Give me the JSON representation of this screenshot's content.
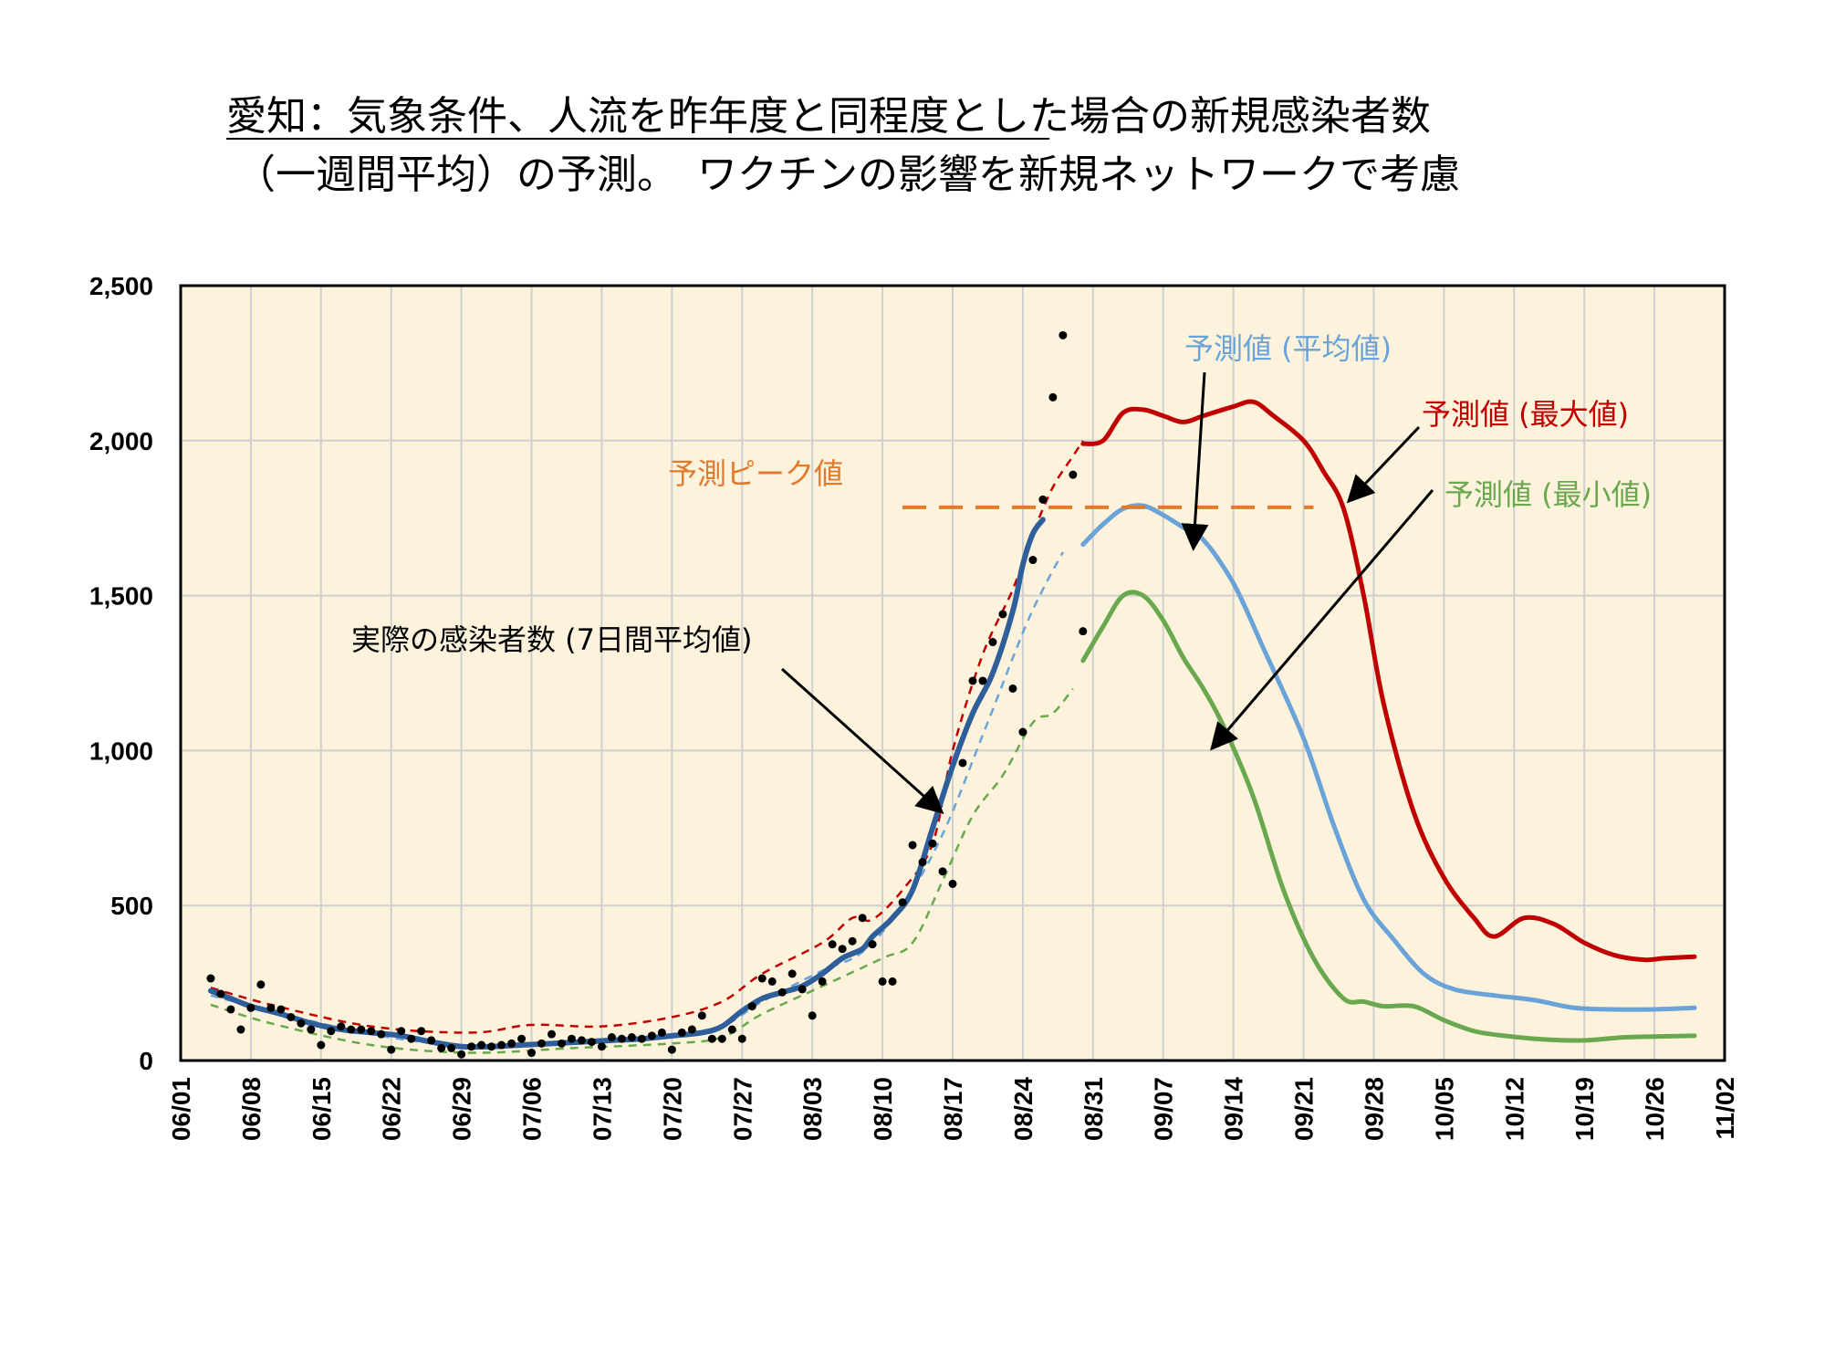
{
  "title_line1": "愛知：気象条件、人流を昨年度と同程度とした場合の新規感染者数",
  "title_line2": "（一週間平均）の予測。　ワクチンの影響を新規ネットワークで考慮",
  "colors": {
    "plot_bg": "#fdf3dc",
    "actual": "#2e5f9a",
    "mean": "#6aa3d8",
    "max": "#c00000",
    "min": "#6aa84f",
    "peak": "#e07b2e",
    "points": "#000000"
  },
  "chart_data": {
    "type": "line",
    "x_type": "date",
    "xlim": [
      "06-01",
      "11-02"
    ],
    "ylim": [
      0,
      2500
    ],
    "y_ticks": [
      0,
      500,
      1000,
      1500,
      2000,
      2500
    ],
    "y_tick_labels": [
      "0",
      "500",
      "1,000",
      "1,500",
      "2,000",
      "2,500"
    ],
    "x_tick_labels": [
      "06/01",
      "06/08",
      "06/15",
      "06/22",
      "06/29",
      "07/06",
      "07/13",
      "07/20",
      "07/27",
      "08/03",
      "08/10",
      "08/17",
      "08/24",
      "08/31",
      "09/07",
      "09/14",
      "09/21",
      "09/28",
      "10/05",
      "10/12",
      "10/19",
      "10/26",
      "11/02"
    ],
    "grid": true,
    "peak_value": 1785,
    "peak_range": [
      "08-12",
      "09-22"
    ],
    "series": [
      {
        "name": "実際の感染者数 (7日間平均値)",
        "style": "solid",
        "points": [
          [
            "06-04",
            225
          ],
          [
            "06-06",
            200
          ],
          [
            "06-08",
            175
          ],
          [
            "06-11",
            150
          ],
          [
            "06-14",
            120
          ],
          [
            "06-17",
            100
          ],
          [
            "06-20",
            90
          ],
          [
            "06-23",
            80
          ],
          [
            "06-26",
            60
          ],
          [
            "06-29",
            45
          ],
          [
            "07-02",
            45
          ],
          [
            "07-05",
            50
          ],
          [
            "07-08",
            55
          ],
          [
            "07-11",
            60
          ],
          [
            "07-14",
            65
          ],
          [
            "07-17",
            70
          ],
          [
            "07-20",
            80
          ],
          [
            "07-23",
            90
          ],
          [
            "07-25",
            110
          ],
          [
            "07-27",
            160
          ],
          [
            "07-29",
            200
          ],
          [
            "07-31",
            220
          ],
          [
            "08-02",
            240
          ],
          [
            "08-04",
            280
          ],
          [
            "08-06",
            330
          ],
          [
            "08-08",
            360
          ],
          [
            "08-09",
            400
          ],
          [
            "08-11",
            460
          ],
          [
            "08-13",
            550
          ],
          [
            "08-15",
            750
          ],
          [
            "08-17",
            950
          ],
          [
            "08-19",
            1120
          ],
          [
            "08-21",
            1250
          ],
          [
            "08-23",
            1450
          ],
          [
            "08-24",
            1600
          ],
          [
            "08-25",
            1700
          ],
          [
            "08-26",
            1745
          ]
        ]
      },
      {
        "name": "",
        "style": "dashed-mean-fit",
        "points": [
          [
            "06-04",
            210
          ],
          [
            "06-10",
            160
          ],
          [
            "06-20",
            85
          ],
          [
            "06-30",
            45
          ],
          [
            "07-10",
            55
          ],
          [
            "07-20",
            75
          ],
          [
            "07-25",
            110
          ],
          [
            "07-29",
            190
          ],
          [
            "08-04",
            290
          ],
          [
            "08-08",
            350
          ],
          [
            "08-12",
            500
          ],
          [
            "08-16",
            730
          ],
          [
            "08-20",
            1050
          ],
          [
            "08-24",
            1380
          ],
          [
            "08-26",
            1520
          ],
          [
            "08-28",
            1640
          ]
        ]
      },
      {
        "name": "",
        "style": "dashed-max-fit",
        "points": [
          [
            "06-04",
            235
          ],
          [
            "06-10",
            180
          ],
          [
            "06-20",
            110
          ],
          [
            "06-30",
            90
          ],
          [
            "07-06",
            115
          ],
          [
            "07-13",
            110
          ],
          [
            "07-20",
            140
          ],
          [
            "07-25",
            190
          ],
          [
            "07-29",
            280
          ],
          [
            "08-04",
            380
          ],
          [
            "08-07",
            460
          ],
          [
            "08-09",
            455
          ],
          [
            "08-12",
            550
          ],
          [
            "08-15",
            700
          ],
          [
            "08-17",
            1000
          ],
          [
            "08-20",
            1310
          ],
          [
            "08-23",
            1520
          ],
          [
            "08-25",
            1700
          ],
          [
            "08-27",
            1850
          ],
          [
            "08-29",
            1950
          ],
          [
            "08-30",
            2000
          ]
        ]
      },
      {
        "name": "",
        "style": "dashed-min-fit",
        "points": [
          [
            "06-04",
            180
          ],
          [
            "06-10",
            120
          ],
          [
            "06-20",
            50
          ],
          [
            "06-30",
            25
          ],
          [
            "07-10",
            40
          ],
          [
            "07-20",
            55
          ],
          [
            "07-25",
            75
          ],
          [
            "07-29",
            150
          ],
          [
            "08-04",
            240
          ],
          [
            "08-10",
            330
          ],
          [
            "08-13",
            380
          ],
          [
            "08-16",
            580
          ],
          [
            "08-19",
            790
          ],
          [
            "08-22",
            920
          ],
          [
            "08-25",
            1090
          ],
          [
            "08-27",
            1120
          ],
          [
            "08-29",
            1200
          ]
        ]
      },
      {
        "name": "予測値 (平均値)",
        "style": "solid",
        "points": [
          [
            "08-30",
            1665
          ],
          [
            "09-01",
            1730
          ],
          [
            "09-03",
            1780
          ],
          [
            "09-05",
            1790
          ],
          [
            "09-07",
            1760
          ],
          [
            "09-09",
            1720
          ],
          [
            "09-11",
            1680
          ],
          [
            "09-14",
            1540
          ],
          [
            "09-17",
            1330
          ],
          [
            "09-21",
            1040
          ],
          [
            "09-24",
            760
          ],
          [
            "09-27",
            520
          ],
          [
            "09-30",
            390
          ],
          [
            "10-03",
            280
          ],
          [
            "10-06",
            230
          ],
          [
            "10-10",
            210
          ],
          [
            "10-14",
            195
          ],
          [
            "10-18",
            170
          ],
          [
            "10-22",
            165
          ],
          [
            "10-26",
            165
          ],
          [
            "10-30",
            170
          ]
        ]
      },
      {
        "name": "予測値 (最大値)",
        "style": "solid",
        "points": [
          [
            "08-30",
            1990
          ],
          [
            "09-01",
            2000
          ],
          [
            "09-03",
            2090
          ],
          [
            "09-05",
            2100
          ],
          [
            "09-07",
            2080
          ],
          [
            "09-09",
            2060
          ],
          [
            "09-11",
            2080
          ],
          [
            "09-14",
            2110
          ],
          [
            "09-16",
            2125
          ],
          [
            "09-18",
            2080
          ],
          [
            "09-21",
            2000
          ],
          [
            "09-23",
            1900
          ],
          [
            "09-25",
            1780
          ],
          [
            "09-27",
            1500
          ],
          [
            "09-29",
            1150
          ],
          [
            "10-02",
            800
          ],
          [
            "10-05",
            590
          ],
          [
            "10-08",
            460
          ],
          [
            "10-10",
            400
          ],
          [
            "10-13",
            460
          ],
          [
            "10-16",
            440
          ],
          [
            "10-19",
            380
          ],
          [
            "10-22",
            340
          ],
          [
            "10-25",
            325
          ],
          [
            "10-27",
            330
          ],
          [
            "10-30",
            335
          ]
        ]
      },
      {
        "name": "予測値 (最小値)",
        "style": "solid",
        "points": [
          [
            "08-30",
            1290
          ],
          [
            "09-01",
            1400
          ],
          [
            "09-03",
            1500
          ],
          [
            "09-05",
            1500
          ],
          [
            "09-07",
            1420
          ],
          [
            "09-09",
            1300
          ],
          [
            "09-11",
            1200
          ],
          [
            "09-13",
            1080
          ],
          [
            "09-16",
            850
          ],
          [
            "09-19",
            550
          ],
          [
            "09-22",
            330
          ],
          [
            "09-25",
            200
          ],
          [
            "09-27",
            190
          ],
          [
            "09-29",
            175
          ],
          [
            "10-02",
            175
          ],
          [
            "10-05",
            130
          ],
          [
            "10-08",
            95
          ],
          [
            "10-11",
            80
          ],
          [
            "10-15",
            68
          ],
          [
            "10-19",
            65
          ],
          [
            "10-23",
            75
          ],
          [
            "10-27",
            78
          ],
          [
            "10-30",
            80
          ]
        ]
      },
      {
        "name": "",
        "style": "points",
        "points": [
          [
            "06-04",
            265
          ],
          [
            "06-05",
            215
          ],
          [
            "06-06",
            165
          ],
          [
            "06-07",
            100
          ],
          [
            "06-08",
            170
          ],
          [
            "06-09",
            245
          ],
          [
            "06-10",
            170
          ],
          [
            "06-11",
            165
          ],
          [
            "06-12",
            140
          ],
          [
            "06-13",
            120
          ],
          [
            "06-14",
            100
          ],
          [
            "06-15",
            50
          ],
          [
            "06-16",
            95
          ],
          [
            "06-17",
            110
          ],
          [
            "06-18",
            100
          ],
          [
            "06-19",
            100
          ],
          [
            "06-20",
            95
          ],
          [
            "06-21",
            85
          ],
          [
            "06-22",
            35
          ],
          [
            "06-23",
            95
          ],
          [
            "06-24",
            70
          ],
          [
            "06-25",
            95
          ],
          [
            "06-26",
            65
          ],
          [
            "06-27",
            40
          ],
          [
            "06-28",
            40
          ],
          [
            "06-29",
            20
          ],
          [
            "06-30",
            45
          ],
          [
            "07-01",
            50
          ],
          [
            "07-02",
            45
          ],
          [
            "07-03",
            50
          ],
          [
            "07-04",
            55
          ],
          [
            "07-05",
            70
          ],
          [
            "07-06",
            25
          ],
          [
            "07-07",
            55
          ],
          [
            "07-08",
            85
          ],
          [
            "07-09",
            55
          ],
          [
            "07-10",
            70
          ],
          [
            "07-11",
            65
          ],
          [
            "07-12",
            60
          ],
          [
            "07-13",
            45
          ],
          [
            "07-14",
            75
          ],
          [
            "07-15",
            70
          ],
          [
            "07-16",
            75
          ],
          [
            "07-17",
            70
          ],
          [
            "07-18",
            80
          ],
          [
            "07-19",
            90
          ],
          [
            "07-20",
            35
          ],
          [
            "07-21",
            90
          ],
          [
            "07-22",
            100
          ],
          [
            "07-23",
            145
          ],
          [
            "07-24",
            70
          ],
          [
            "07-25",
            70
          ],
          [
            "07-26",
            100
          ],
          [
            "07-27",
            70
          ],
          [
            "07-28",
            175
          ],
          [
            "07-29",
            265
          ],
          [
            "07-30",
            255
          ],
          [
            "07-31",
            220
          ],
          [
            "08-01",
            280
          ],
          [
            "08-02",
            230
          ],
          [
            "08-03",
            145
          ],
          [
            "08-04",
            255
          ],
          [
            "08-05",
            375
          ],
          [
            "08-06",
            360
          ],
          [
            "08-07",
            385
          ],
          [
            "08-08",
            460
          ],
          [
            "08-09",
            375
          ],
          [
            "08-10",
            255
          ],
          [
            "08-11",
            255
          ],
          [
            "08-12",
            510
          ],
          [
            "08-13",
            695
          ],
          [
            "08-14",
            640
          ],
          [
            "08-15",
            700
          ],
          [
            "08-16",
            610
          ],
          [
            "08-17",
            570
          ],
          [
            "08-18",
            960
          ],
          [
            "08-19",
            1225
          ],
          [
            "08-20",
            1225
          ],
          [
            "08-21",
            1350
          ],
          [
            "08-22",
            1440
          ],
          [
            "08-23",
            1200
          ],
          [
            "08-24",
            1060
          ],
          [
            "08-25",
            1615
          ],
          [
            "08-26",
            1810
          ],
          [
            "08-27",
            2140
          ],
          [
            "08-28",
            2340
          ],
          [
            "08-29",
            1890
          ],
          [
            "08-30",
            1385
          ]
        ]
      }
    ],
    "annotations": [
      {
        "text": "予測値 (平均値)",
        "color": "#6aa3d8"
      },
      {
        "text": "予測値 (最大値)",
        "color": "#c00000"
      },
      {
        "text": "予測ピーク値",
        "color": "#e07b2e"
      },
      {
        "text": "予測値 (最小値)",
        "color": "#6aa84f"
      },
      {
        "text": "実際の感染者数 (7日間平均値)",
        "color": "#000000"
      }
    ]
  }
}
